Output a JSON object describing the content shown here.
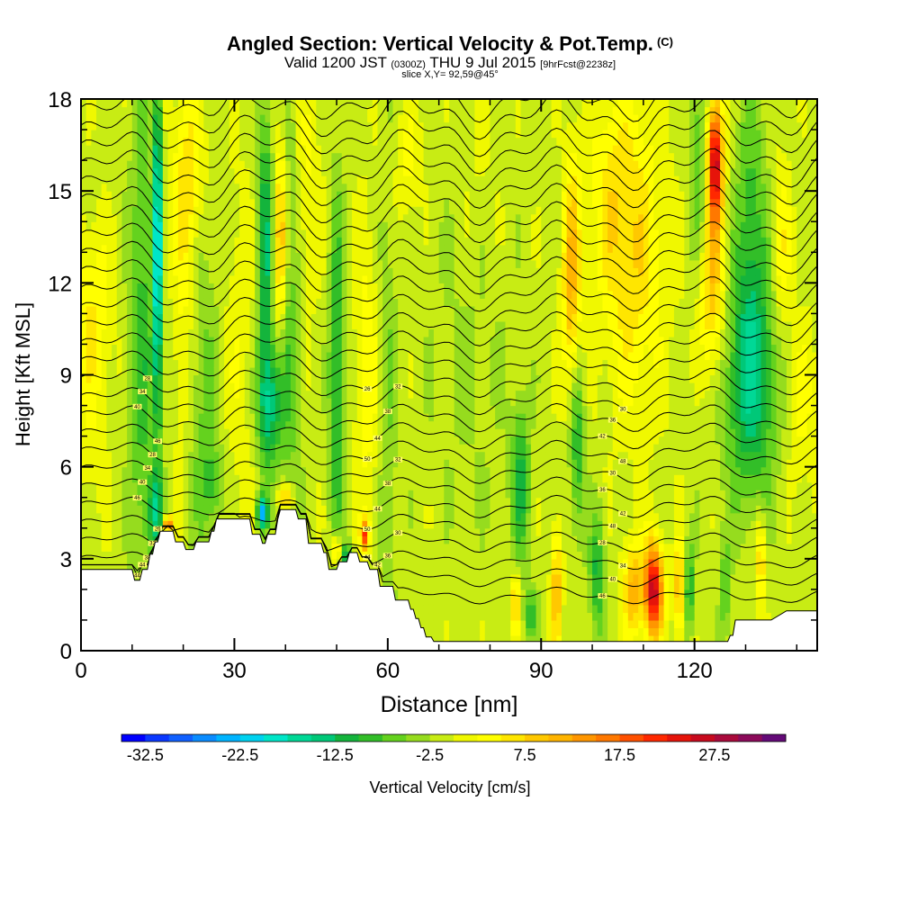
{
  "header": {
    "title": "Angled Section: Vertical Velocity & Pot.Temp.",
    "title_mark": "(C)",
    "valid_prefix": "Valid 1200 JST",
    "valid_utc": "(0300Z)",
    "valid_date": "THU 9 Jul 2015",
    "forecast": "[9hrFcst@2238z]",
    "slice": "slice X,Y= 92,59@45°"
  },
  "chart_data": {
    "type": "heatmap",
    "xlabel": "Distance [nm]",
    "ylabel": "Height [Kft MSL]",
    "xlim": [
      0,
      144
    ],
    "ylim": [
      0,
      18
    ],
    "x_ticks": [
      "0",
      "30",
      "60",
      "90",
      "120"
    ],
    "x_tick_values": [
      0,
      30,
      60,
      90,
      120
    ],
    "y_ticks": [
      "0",
      "3",
      "6",
      "9",
      "12",
      "15",
      "18"
    ],
    "y_tick_values": [
      0,
      3,
      6,
      9,
      12,
      15,
      18
    ],
    "colorbar": {
      "label": "Vertical Velocity [cm/s]",
      "tick_labels": [
        "-32.5",
        "-22.5",
        "-12.5",
        "-2.5",
        "7.5",
        "17.5",
        "27.5"
      ],
      "min": -35,
      "max": 35,
      "step": 2.5,
      "colors": [
        "#0000ff",
        "#0a38ff",
        "#1060ff",
        "#0a8cff",
        "#00b4ff",
        "#00d2f0",
        "#00e6c8",
        "#00d896",
        "#00c878",
        "#14b43c",
        "#32be28",
        "#64d21e",
        "#96dc1e",
        "#c8ec14",
        "#f0f800",
        "#ffff00",
        "#ffe600",
        "#ffc800",
        "#ffb400",
        "#ff9600",
        "#ff7800",
        "#ff5000",
        "#ff2800",
        "#e6140a",
        "#c80a1e",
        "#aa0a3c",
        "#8c0a5a",
        "#640a78"
      ]
    },
    "vertical_velocity_field": {
      "background_cm_s": -1,
      "features": [
        {
          "x": 2,
          "z": 11,
          "w_cm_s": 6,
          "half_width_nm": 4,
          "half_depth_kft": 3
        },
        {
          "x": 2,
          "z": 6.5,
          "w_cm_s": 2,
          "half_width_nm": 3,
          "half_depth_kft": 3
        },
        {
          "x": 12,
          "z": 10,
          "w_cm_s": -8,
          "half_width_nm": 2.5,
          "half_depth_kft": 8
        },
        {
          "x": 15,
          "z": 13,
          "w_cm_s": -22,
          "half_width_nm": 0.8,
          "half_depth_kft": 6
        },
        {
          "x": 14.5,
          "z": 4.5,
          "w_cm_s": -10,
          "half_width_nm": 1.5,
          "half_depth_kft": 1.3
        },
        {
          "x": 17,
          "z": 4.1,
          "w_cm_s": 22,
          "half_width_nm": 0.8,
          "half_depth_kft": 0.3
        },
        {
          "x": 21,
          "z": 15.5,
          "w_cm_s": 8,
          "half_width_nm": 3,
          "half_depth_kft": 3
        },
        {
          "x": 20,
          "z": 10,
          "w_cm_s": 4,
          "half_width_nm": 2,
          "half_depth_kft": 4
        },
        {
          "x": 24,
          "z": 8,
          "w_cm_s": -5,
          "half_width_nm": 3,
          "half_depth_kft": 6
        },
        {
          "x": 26,
          "z": 5.5,
          "w_cm_s": -6,
          "half_width_nm": 2,
          "half_depth_kft": 1
        },
        {
          "x": 31,
          "z": 10,
          "w_cm_s": 3,
          "half_width_nm": 3,
          "half_depth_kft": 6
        },
        {
          "x": 36,
          "z": 13,
          "w_cm_s": -12,
          "half_width_nm": 1.5,
          "half_depth_kft": 5
        },
        {
          "x": 37,
          "z": 8,
          "w_cm_s": -12,
          "half_width_nm": 2.5,
          "half_depth_kft": 2
        },
        {
          "x": 35.5,
          "z": 4.5,
          "w_cm_s": -22,
          "half_width_nm": 1,
          "half_depth_kft": 0.5
        },
        {
          "x": 40,
          "z": 5,
          "w_cm_s": 10,
          "half_width_nm": 1.5,
          "half_depth_kft": 0.4
        },
        {
          "x": 39,
          "z": 13.5,
          "w_cm_s": 12,
          "half_width_nm": 1.2,
          "half_depth_kft": 3
        },
        {
          "x": 41,
          "z": 11,
          "w_cm_s": -6,
          "half_width_nm": 2,
          "half_depth_kft": 7
        },
        {
          "x": 44,
          "z": 15,
          "w_cm_s": 4,
          "half_width_nm": 3,
          "half_depth_kft": 4
        },
        {
          "x": 50,
          "z": 9,
          "w_cm_s": -10,
          "half_width_nm": 1.5,
          "half_depth_kft": 6
        },
        {
          "x": 50,
          "z": 3.3,
          "w_cm_s": 12,
          "half_width_nm": 1,
          "half_depth_kft": 0.5
        },
        {
          "x": 52,
          "z": 3,
          "w_cm_s": -14,
          "half_width_nm": 1,
          "half_depth_kft": 0.5
        },
        {
          "x": 55.5,
          "z": 3.8,
          "w_cm_s": 20,
          "half_width_nm": 0.8,
          "half_depth_kft": 0.5
        },
        {
          "x": 56,
          "z": 9,
          "w_cm_s": 5,
          "half_width_nm": 2.5,
          "half_depth_kft": 5
        },
        {
          "x": 60,
          "z": 8,
          "w_cm_s": -4,
          "half_width_nm": 2,
          "half_depth_kft": 8
        },
        {
          "x": 64,
          "z": 16,
          "w_cm_s": 4,
          "half_width_nm": 3,
          "half_depth_kft": 2
        },
        {
          "x": 76,
          "z": 10,
          "w_cm_s": -2,
          "half_width_nm": 8,
          "half_depth_kft": 6
        },
        {
          "x": 78,
          "z": 15,
          "w_cm_s": 2,
          "half_width_nm": 4,
          "half_depth_kft": 3
        },
        {
          "x": 86,
          "z": 5.5,
          "w_cm_s": -10,
          "half_width_nm": 1.8,
          "half_depth_kft": 2.5
        },
        {
          "x": 85,
          "z": 1.5,
          "w_cm_s": 10,
          "half_width_nm": 1,
          "half_depth_kft": 1
        },
        {
          "x": 88,
          "z": 1.2,
          "w_cm_s": -8,
          "half_width_nm": 1.5,
          "half_depth_kft": 0.8
        },
        {
          "x": 93,
          "z": 2,
          "w_cm_s": 12,
          "half_width_nm": 1,
          "half_depth_kft": 2
        },
        {
          "x": 96,
          "z": 12,
          "w_cm_s": 12,
          "half_width_nm": 1.8,
          "half_depth_kft": 4
        },
        {
          "x": 97,
          "z": 7,
          "w_cm_s": -10,
          "half_width_nm": 1.5,
          "half_depth_kft": 3
        },
        {
          "x": 101,
          "z": 2.5,
          "w_cm_s": -10,
          "half_width_nm": 1.5,
          "half_depth_kft": 2
        },
        {
          "x": 103,
          "z": 15,
          "w_cm_s": 4,
          "half_width_nm": 4,
          "half_depth_kft": 3
        },
        {
          "x": 108,
          "z": 13,
          "w_cm_s": 8,
          "half_width_nm": 6,
          "half_depth_kft": 5
        },
        {
          "x": 112,
          "z": 2,
          "w_cm_s": 28,
          "half_width_nm": 1.8,
          "half_depth_kft": 1.5
        },
        {
          "x": 108,
          "z": 2,
          "w_cm_s": 12,
          "half_width_nm": 2,
          "half_depth_kft": 1.5
        },
        {
          "x": 117,
          "z": 2,
          "w_cm_s": 12,
          "half_width_nm": 1,
          "half_depth_kft": 1.5
        },
        {
          "x": 119,
          "z": 2,
          "w_cm_s": -10,
          "half_width_nm": 1,
          "half_depth_kft": 1.5
        },
        {
          "x": 121,
          "z": 15,
          "w_cm_s": -8,
          "half_width_nm": 2,
          "half_depth_kft": 5
        },
        {
          "x": 124,
          "z": 16,
          "w_cm_s": 28,
          "half_width_nm": 1.5,
          "half_depth_kft": 2
        },
        {
          "x": 123,
          "z": 12,
          "w_cm_s": 12,
          "half_width_nm": 3,
          "half_depth_kft": 3
        },
        {
          "x": 126,
          "z": 2,
          "w_cm_s": -8,
          "half_width_nm": 1,
          "half_depth_kft": 1.5
        },
        {
          "x": 131,
          "z": 9,
          "w_cm_s": -14,
          "half_width_nm": 5,
          "half_depth_kft": 4
        },
        {
          "x": 131,
          "z": 15,
          "w_cm_s": -6,
          "half_width_nm": 3,
          "half_depth_kft": 4
        },
        {
          "x": 133,
          "z": 3,
          "w_cm_s": 10,
          "half_width_nm": 1,
          "half_depth_kft": 1.5
        },
        {
          "x": 137,
          "z": 13,
          "w_cm_s": 6,
          "half_width_nm": 2,
          "half_depth_kft": 3
        },
        {
          "x": 141,
          "z": 8,
          "w_cm_s": 4,
          "half_width_nm": 3,
          "half_depth_kft": 3
        }
      ]
    },
    "terrain_height_kft": {
      "x": [
        0,
        10,
        10.5,
        11.5,
        12,
        13,
        13.5,
        14,
        14.5,
        15,
        15.5,
        16,
        18,
        18.5,
        20,
        20.5,
        22,
        22.5,
        25,
        25.5,
        26,
        26.5,
        28,
        29,
        33,
        33.5,
        35,
        35.5,
        36,
        36.5,
        38,
        38.5,
        39,
        42,
        42.5,
        44,
        44.5,
        47,
        47.5,
        48,
        48.5,
        50,
        50.5,
        52,
        52.5,
        54,
        54.5,
        56,
        56.5,
        58,
        58.5,
        61,
        61.5,
        64,
        64.5,
        65,
        65.5,
        66,
        66.5,
        67,
        67.5,
        68.5,
        69,
        69.5,
        70,
        96,
        103,
        113,
        114,
        115,
        120,
        126,
        126.5,
        127,
        127.5,
        128,
        135,
        138,
        144
      ],
      "values": [
        2.65,
        2.65,
        2.3,
        2.3,
        2.65,
        2.65,
        3.15,
        3.15,
        3.55,
        3.55,
        3.9,
        3.9,
        3.9,
        3.55,
        3.55,
        3.3,
        3.3,
        3.55,
        3.55,
        3.9,
        3.9,
        4.3,
        4.3,
        4.3,
        4.3,
        3.8,
        3.8,
        3.5,
        3.5,
        3.8,
        3.8,
        4.3,
        4.6,
        4.6,
        4.3,
        4.3,
        3.5,
        3.5,
        3.2,
        3.2,
        2.65,
        2.65,
        2.9,
        2.9,
        3.2,
        3.2,
        2.9,
        2.9,
        2.65,
        2.65,
        2.1,
        2.1,
        1.65,
        1.65,
        1.35,
        1.35,
        1.05,
        1.05,
        0.75,
        0.75,
        0.45,
        0.45,
        0.3,
        0.3,
        0.3,
        0.3,
        0.3,
        0.3,
        0.3,
        0.3,
        0.3,
        0.3,
        0.3,
        0.5,
        0.5,
        1.0,
        1.0,
        1.3,
        1.3
      ]
    },
    "potential_temperature_contours": {
      "interval_k": 1,
      "base_k": 24,
      "base_height_kft": 1.8,
      "count": 29,
      "labels": [
        "44",
        "44",
        "46",
        "44",
        "42",
        "40",
        "38",
        "36",
        "34",
        "32",
        "30",
        "28",
        "26",
        "50",
        "48",
        "46",
        "44",
        "42",
        "40",
        "38",
        "36",
        "34",
        "32",
        "30",
        "28",
        "50",
        "48",
        "46",
        "44",
        "42",
        "40",
        "38",
        "36",
        "34",
        "32",
        "30",
        "28",
        "26"
      ]
    }
  }
}
